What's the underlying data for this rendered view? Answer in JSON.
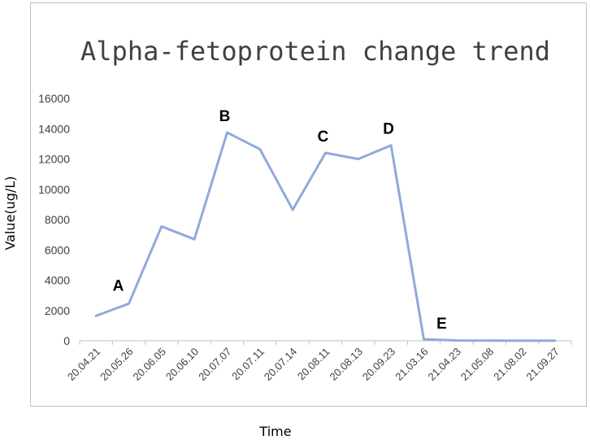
{
  "chart_data": {
    "type": "line",
    "title": "Alpha-fetoprotein change trend",
    "xlabel": "Time",
    "ylabel": "Value(ug/L)",
    "ylim": [
      0,
      16000
    ],
    "yticks": [
      0,
      2000,
      4000,
      6000,
      8000,
      10000,
      12000,
      14000,
      16000
    ],
    "ytick_labels": [
      "0",
      "2000",
      "4000",
      "6000",
      "8000",
      "10000",
      "12000",
      "14000",
      "16000"
    ],
    "categories": [
      "20.04.21",
      "20.05.26",
      "20.06.05",
      "20.06.10",
      "20.07.07",
      "20.07.11",
      "20.07.14",
      "20.08.11",
      "20.08.13",
      "20.09.23",
      "21.03.16",
      "21.04.23",
      "21.05.08",
      "21.08.02",
      "21.09.27"
    ],
    "values": [
      1650,
      2450,
      7550,
      6700,
      13750,
      12650,
      8650,
      12400,
      12000,
      12900,
      100,
      20,
      10,
      5,
      5
    ],
    "grid": false,
    "color": "#8faadc",
    "annotations": [
      {
        "text": "A",
        "index": 1
      },
      {
        "text": "B",
        "index": 4
      },
      {
        "text": "C",
        "index": 7
      },
      {
        "text": "D",
        "index": 9
      },
      {
        "text": "E",
        "index": 10
      }
    ]
  }
}
